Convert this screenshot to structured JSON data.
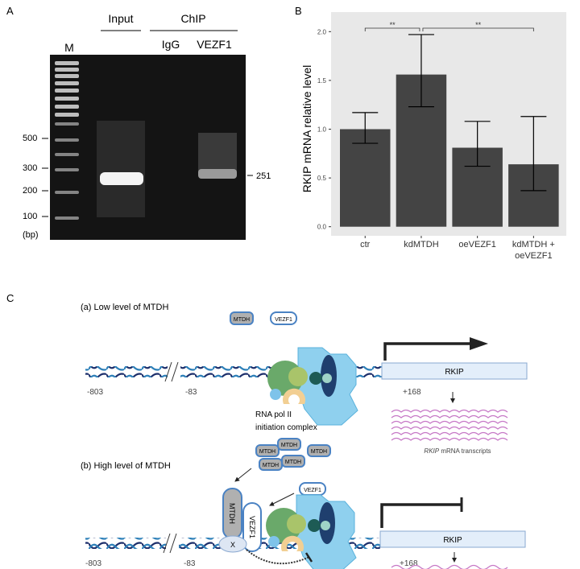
{
  "panels": {
    "a": "A",
    "b": "B",
    "c": "C"
  },
  "gel": {
    "input_label": "Input",
    "chip_label": "ChIP",
    "igg_label": "IgG",
    "vezf1_label": "VEZF1",
    "marker_label": "M",
    "size_markers": [
      "500",
      "300",
      "200",
      "100"
    ],
    "unit": "(bp)",
    "band_size": "251"
  },
  "chart_data": {
    "type": "bar",
    "categories": [
      "ctr",
      "kdMTDH",
      "oeVEZF1",
      "kdMTDH +\noeVEZF1"
    ],
    "category_lines": [
      [
        "ctr"
      ],
      [
        "kdMTDH"
      ],
      [
        "oeVEZF1"
      ],
      [
        "kdMTDH +",
        "oeVEZF1"
      ]
    ],
    "values": [
      1.0,
      1.56,
      0.81,
      0.64
    ],
    "error_low": [
      0.855,
      1.23,
      0.62,
      0.37
    ],
    "error_high": [
      1.17,
      1.97,
      1.08,
      1.13
    ],
    "ylabel": "RKIP mRNA relative level",
    "xlabel": "",
    "ylim": [
      -0.1,
      2.3
    ],
    "yticks": [
      "0.0",
      "0.5",
      "1.0",
      "1.5",
      "2.0"
    ],
    "ytick_values": [
      0,
      0.5,
      1.0,
      1.5,
      2.0
    ],
    "grid": false,
    "significance": [
      {
        "from": 0,
        "to": 1,
        "label": "**"
      },
      {
        "from": 1,
        "to": 3,
        "label": "**"
      }
    ],
    "bar_color": "#444444",
    "panel_bg": "#e8e8e8"
  },
  "diagram": {
    "low_title": "(a) Low level of MTDH",
    "high_title": "(b) High level of MTDH",
    "mtdh": "MTDH",
    "vezf1": "VEZF1",
    "x": "X",
    "pos_left": "-803",
    "pos_mid": "-83",
    "pos_right": "+168",
    "gene": "RKIP",
    "complex_line1": "RNA pol II",
    "complex_line2": "initiation complex",
    "transcripts_gene": "RKIP",
    "transcripts_rest": " mRNA transcripts",
    "colors": {
      "dna_dark": "#1d2f6b",
      "dna_light": "#2c7fb8",
      "gene_box": "#e3eefa",
      "mtdh_fill": "#b0b0b0",
      "protein_border": "#4a82c3",
      "mrna": "#c678c6",
      "pol": "#8fd0ee"
    }
  }
}
